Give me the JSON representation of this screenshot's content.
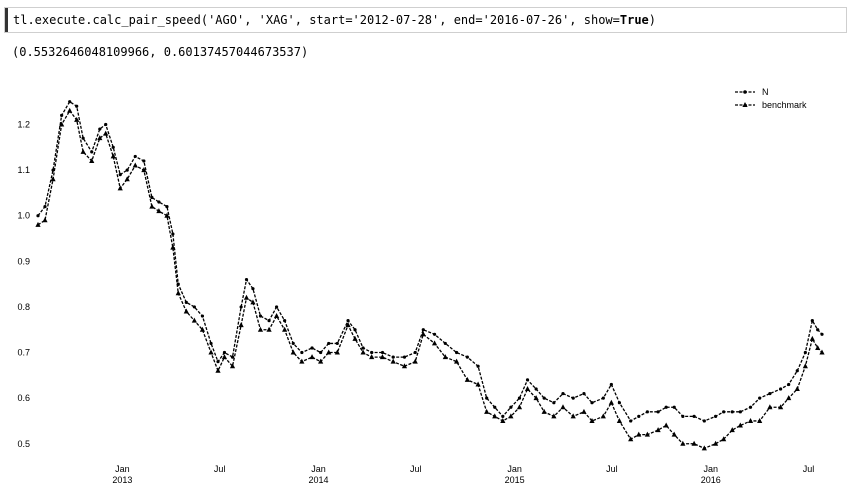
{
  "cell": {
    "code_prefix": "tl.execute.calc_pair_speed('AGO', 'XAG', start='2012-07-28', end='2016-07-26', show=",
    "code_keyword": "True",
    "code_suffix": ")"
  },
  "output": {
    "result_text": "(0.5532646048109966, 0.60137457044673537)"
  },
  "chart_data": {
    "type": "line",
    "title": "",
    "xlabel": "",
    "ylabel": "",
    "ylim": [
      0.46,
      1.28
    ],
    "xlim": [
      "2012-07-28",
      "2016-07-26"
    ],
    "yticks": [
      0.5,
      0.6,
      0.7,
      0.8,
      0.9,
      1.0,
      1.1,
      1.2
    ],
    "ytick_labels": [
      "0.5",
      "0.6",
      "0.7",
      "0.8",
      "0.9",
      "1.0",
      "1.1",
      "1.2"
    ],
    "xticks": [
      {
        "date": "2013-01-01",
        "label": "Jan",
        "year": "2013"
      },
      {
        "date": "2013-07-01",
        "label": "Jul",
        "year": ""
      },
      {
        "date": "2014-01-01",
        "label": "Jan",
        "year": "2014"
      },
      {
        "date": "2014-07-01",
        "label": "Jul",
        "year": ""
      },
      {
        "date": "2015-01-01",
        "label": "Jan",
        "year": "2015"
      },
      {
        "date": "2015-07-01",
        "label": "Jul",
        "year": ""
      },
      {
        "date": "2016-01-01",
        "label": "Jan",
        "year": "2016"
      },
      {
        "date": "2016-07-01",
        "label": "Jul",
        "year": ""
      }
    ],
    "legend_position": "top-right",
    "grid": false,
    "series": [
      {
        "name": "N",
        "color": "#000000",
        "marker": "dot",
        "points": [
          [
            "2012-07-28",
            1.0
          ],
          [
            "2012-08-10",
            1.02
          ],
          [
            "2012-08-25",
            1.1
          ],
          [
            "2012-09-10",
            1.22
          ],
          [
            "2012-09-25",
            1.25
          ],
          [
            "2012-10-08",
            1.24
          ],
          [
            "2012-10-20",
            1.17
          ],
          [
            "2012-11-05",
            1.14
          ],
          [
            "2012-11-20",
            1.19
          ],
          [
            "2012-12-01",
            1.2
          ],
          [
            "2012-12-15",
            1.15
          ],
          [
            "2012-12-28",
            1.09
          ],
          [
            "2013-01-10",
            1.1
          ],
          [
            "2013-01-25",
            1.13
          ],
          [
            "2013-02-10",
            1.12
          ],
          [
            "2013-02-25",
            1.04
          ],
          [
            "2013-03-10",
            1.03
          ],
          [
            "2013-03-25",
            1.02
          ],
          [
            "2013-04-05",
            0.96
          ],
          [
            "2013-04-15",
            0.85
          ],
          [
            "2013-04-30",
            0.81
          ],
          [
            "2013-05-15",
            0.8
          ],
          [
            "2013-05-30",
            0.78
          ],
          [
            "2013-06-15",
            0.72
          ],
          [
            "2013-06-28",
            0.68
          ],
          [
            "2013-07-10",
            0.7
          ],
          [
            "2013-07-25",
            0.69
          ],
          [
            "2013-08-10",
            0.8
          ],
          [
            "2013-08-20",
            0.86
          ],
          [
            "2013-09-01",
            0.84
          ],
          [
            "2013-09-15",
            0.78
          ],
          [
            "2013-10-01",
            0.77
          ],
          [
            "2013-10-15",
            0.8
          ],
          [
            "2013-10-30",
            0.77
          ],
          [
            "2013-11-15",
            0.72
          ],
          [
            "2013-12-01",
            0.7
          ],
          [
            "2013-12-20",
            0.71
          ],
          [
            "2014-01-05",
            0.7
          ],
          [
            "2014-01-20",
            0.72
          ],
          [
            "2014-02-05",
            0.72
          ],
          [
            "2014-02-25",
            0.77
          ],
          [
            "2014-03-10",
            0.75
          ],
          [
            "2014-03-25",
            0.71
          ],
          [
            "2014-04-10",
            0.7
          ],
          [
            "2014-04-30",
            0.7
          ],
          [
            "2014-05-20",
            0.69
          ],
          [
            "2014-06-10",
            0.69
          ],
          [
            "2014-06-30",
            0.7
          ],
          [
            "2014-07-15",
            0.75
          ],
          [
            "2014-08-05",
            0.74
          ],
          [
            "2014-08-25",
            0.72
          ],
          [
            "2014-09-15",
            0.7
          ],
          [
            "2014-10-05",
            0.69
          ],
          [
            "2014-10-25",
            0.67
          ],
          [
            "2014-11-10",
            0.6
          ],
          [
            "2014-11-25",
            0.58
          ],
          [
            "2014-12-10",
            0.56
          ],
          [
            "2014-12-25",
            0.58
          ],
          [
            "2015-01-10",
            0.6
          ],
          [
            "2015-01-25",
            0.64
          ],
          [
            "2015-02-10",
            0.62
          ],
          [
            "2015-02-25",
            0.6
          ],
          [
            "2015-03-15",
            0.59
          ],
          [
            "2015-04-01",
            0.61
          ],
          [
            "2015-04-20",
            0.6
          ],
          [
            "2015-05-10",
            0.61
          ],
          [
            "2015-05-25",
            0.59
          ],
          [
            "2015-06-15",
            0.6
          ],
          [
            "2015-06-30",
            0.63
          ],
          [
            "2015-07-15",
            0.59
          ],
          [
            "2015-08-05",
            0.55
          ],
          [
            "2015-08-20",
            0.56
          ],
          [
            "2015-09-05",
            0.57
          ],
          [
            "2015-09-25",
            0.57
          ],
          [
            "2015-10-10",
            0.58
          ],
          [
            "2015-10-25",
            0.58
          ],
          [
            "2015-11-10",
            0.56
          ],
          [
            "2015-12-01",
            0.56
          ],
          [
            "2015-12-20",
            0.55
          ],
          [
            "2016-01-10",
            0.56
          ],
          [
            "2016-01-25",
            0.57
          ],
          [
            "2016-02-10",
            0.57
          ],
          [
            "2016-02-25",
            0.57
          ],
          [
            "2016-03-15",
            0.58
          ],
          [
            "2016-04-01",
            0.6
          ],
          [
            "2016-04-20",
            0.61
          ],
          [
            "2016-05-10",
            0.62
          ],
          [
            "2016-05-25",
            0.63
          ],
          [
            "2016-06-10",
            0.66
          ],
          [
            "2016-06-25",
            0.7
          ],
          [
            "2016-07-08",
            0.77
          ],
          [
            "2016-07-18",
            0.75
          ],
          [
            "2016-07-26",
            0.74
          ]
        ]
      },
      {
        "name": "benchmark",
        "color": "#000000",
        "marker": "triangle",
        "points": [
          [
            "2012-07-28",
            0.98
          ],
          [
            "2012-08-10",
            0.99
          ],
          [
            "2012-08-25",
            1.08
          ],
          [
            "2012-09-10",
            1.2
          ],
          [
            "2012-09-25",
            1.23
          ],
          [
            "2012-10-08",
            1.21
          ],
          [
            "2012-10-20",
            1.14
          ],
          [
            "2012-11-05",
            1.12
          ],
          [
            "2012-11-20",
            1.17
          ],
          [
            "2012-12-01",
            1.18
          ],
          [
            "2012-12-15",
            1.13
          ],
          [
            "2012-12-28",
            1.06
          ],
          [
            "2013-01-10",
            1.08
          ],
          [
            "2013-01-25",
            1.11
          ],
          [
            "2013-02-10",
            1.1
          ],
          [
            "2013-02-25",
            1.02
          ],
          [
            "2013-03-10",
            1.01
          ],
          [
            "2013-03-25",
            1.0
          ],
          [
            "2013-04-05",
            0.93
          ],
          [
            "2013-04-15",
            0.83
          ],
          [
            "2013-04-30",
            0.79
          ],
          [
            "2013-05-15",
            0.77
          ],
          [
            "2013-05-30",
            0.75
          ],
          [
            "2013-06-15",
            0.7
          ],
          [
            "2013-06-28",
            0.66
          ],
          [
            "2013-07-10",
            0.69
          ],
          [
            "2013-07-25",
            0.67
          ],
          [
            "2013-08-10",
            0.76
          ],
          [
            "2013-08-20",
            0.82
          ],
          [
            "2013-09-01",
            0.81
          ],
          [
            "2013-09-15",
            0.75
          ],
          [
            "2013-10-01",
            0.75
          ],
          [
            "2013-10-15",
            0.78
          ],
          [
            "2013-10-30",
            0.75
          ],
          [
            "2013-11-15",
            0.7
          ],
          [
            "2013-12-01",
            0.68
          ],
          [
            "2013-12-20",
            0.69
          ],
          [
            "2014-01-05",
            0.68
          ],
          [
            "2014-01-20",
            0.7
          ],
          [
            "2014-02-05",
            0.7
          ],
          [
            "2014-02-25",
            0.76
          ],
          [
            "2014-03-10",
            0.73
          ],
          [
            "2014-03-25",
            0.7
          ],
          [
            "2014-04-10",
            0.69
          ],
          [
            "2014-04-30",
            0.69
          ],
          [
            "2014-05-20",
            0.68
          ],
          [
            "2014-06-10",
            0.67
          ],
          [
            "2014-06-30",
            0.68
          ],
          [
            "2014-07-15",
            0.74
          ],
          [
            "2014-08-05",
            0.72
          ],
          [
            "2014-08-25",
            0.69
          ],
          [
            "2014-09-15",
            0.68
          ],
          [
            "2014-10-05",
            0.64
          ],
          [
            "2014-10-25",
            0.63
          ],
          [
            "2014-11-10",
            0.57
          ],
          [
            "2014-11-25",
            0.56
          ],
          [
            "2014-12-10",
            0.55
          ],
          [
            "2014-12-25",
            0.56
          ],
          [
            "2015-01-10",
            0.58
          ],
          [
            "2015-01-25",
            0.62
          ],
          [
            "2015-02-10",
            0.6
          ],
          [
            "2015-02-25",
            0.57
          ],
          [
            "2015-03-15",
            0.56
          ],
          [
            "2015-04-01",
            0.58
          ],
          [
            "2015-04-20",
            0.56
          ],
          [
            "2015-05-10",
            0.57
          ],
          [
            "2015-05-25",
            0.55
          ],
          [
            "2015-06-15",
            0.56
          ],
          [
            "2015-06-30",
            0.59
          ],
          [
            "2015-07-15",
            0.55
          ],
          [
            "2015-08-05",
            0.51
          ],
          [
            "2015-08-20",
            0.52
          ],
          [
            "2015-09-05",
            0.52
          ],
          [
            "2015-09-25",
            0.53
          ],
          [
            "2015-10-10",
            0.54
          ],
          [
            "2015-10-25",
            0.52
          ],
          [
            "2015-11-10",
            0.5
          ],
          [
            "2015-12-01",
            0.5
          ],
          [
            "2015-12-20",
            0.49
          ],
          [
            "2016-01-10",
            0.5
          ],
          [
            "2016-01-25",
            0.51
          ],
          [
            "2016-02-10",
            0.53
          ],
          [
            "2016-02-25",
            0.54
          ],
          [
            "2016-03-15",
            0.55
          ],
          [
            "2016-04-01",
            0.55
          ],
          [
            "2016-04-20",
            0.58
          ],
          [
            "2016-05-10",
            0.58
          ],
          [
            "2016-05-25",
            0.6
          ],
          [
            "2016-06-10",
            0.62
          ],
          [
            "2016-06-25",
            0.67
          ],
          [
            "2016-07-08",
            0.73
          ],
          [
            "2016-07-18",
            0.71
          ],
          [
            "2016-07-26",
            0.7
          ]
        ]
      }
    ]
  }
}
